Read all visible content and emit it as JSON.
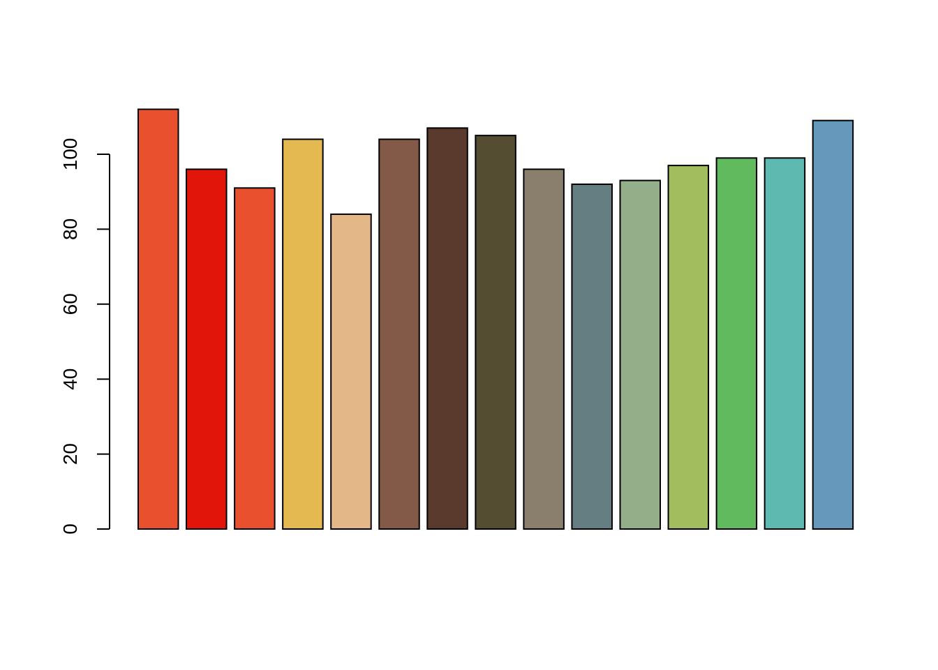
{
  "chart_data": {
    "type": "bar",
    "title": "",
    "xlabel": "",
    "ylabel": "",
    "ylim": [
      0,
      112
    ],
    "yticks": [
      0,
      20,
      40,
      60,
      80,
      100
    ],
    "values": [
      112,
      96,
      91,
      104,
      84,
      104,
      107,
      105,
      96,
      92,
      93,
      97,
      99,
      99,
      109
    ],
    "colors": [
      "#E8502E",
      "#E2150A",
      "#E8502E",
      "#E4B951",
      "#E4B788",
      "#835A48",
      "#5A3A2C",
      "#554D32",
      "#8A7E6C",
      "#657E82",
      "#95AE8A",
      "#A1BD5E",
      "#62BA5F",
      "#5EB9B1",
      "#6598BA"
    ],
    "grid": false,
    "legend": "none"
  }
}
